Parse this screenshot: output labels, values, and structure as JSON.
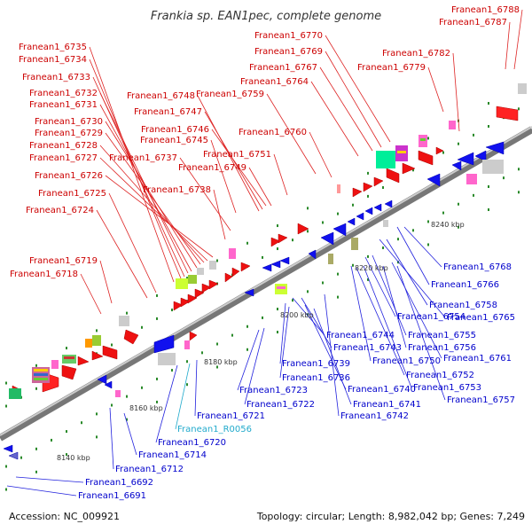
{
  "title": "Frankia sp. EAN1pec, complete genome",
  "footer": {
    "accession": "Accession: NC_009921",
    "topology": "Topology: circular; Length: 8,982,042 bp; Genes: 7,249"
  },
  "colors": {
    "forward": "#cc0000",
    "reverse": "#0000cc",
    "rna": "#22aacc",
    "line_forward": "#dd2222",
    "line_reverse": "#2222dd",
    "backbone": "#999999",
    "tick": "#2a8a2a"
  },
  "scale_labels": [
    "8140 kbp",
    "8160 kbp",
    "8180 kbp",
    "8200 kbp",
    "8220 kbp",
    "8240 kbp"
  ],
  "top_genes": [
    "Franean1_6735",
    "Franean1_6734",
    "Franean1_6733",
    "Franean1_6732",
    "Franean1_6731",
    "Franean1_6730",
    "Franean1_6729",
    "Franean1_6728",
    "Franean1_6727",
    "Franean1_6726",
    "Franean1_6725",
    "Franean1_6724",
    "Franean1_6719",
    "Franean1_6718",
    "Franean1_6748",
    "Franean1_6747",
    "Franean1_6746",
    "Franean1_6745",
    "Franean1_6737",
    "Franean1_6749",
    "Franean1_6738",
    "Franean1_6759",
    "Franean1_6751",
    "Franean1_6770",
    "Franean1_6769",
    "Franean1_6767",
    "Franean1_6764",
    "Franean1_6760",
    "Franean1_6782",
    "Franean1_6779",
    "Franean1_6788",
    "Franean1_6787"
  ],
  "bottom_genes": [
    "Franean1_6768",
    "Franean1_6766",
    "Franean1_6758",
    "Franean1_6765",
    "Franean1_6754",
    "Franean1_6755",
    "Franean1_6744",
    "Franean1_6743",
    "Franean1_6756",
    "Franean1_6761",
    "Franean1_6750",
    "Franean1_6739",
    "Franean1_6736",
    "Franean1_6752",
    "Franean1_6753",
    "Franean1_6757",
    "Franean1_6740",
    "Franean1_6723",
    "Franean1_6741",
    "Franean1_6722",
    "Franean1_6742",
    "Franean1_6721",
    "Franean1_R0056",
    "Franean1_6720",
    "Franean1_6714",
    "Franean1_6712",
    "Franean1_6692",
    "Franean1_6691"
  ]
}
